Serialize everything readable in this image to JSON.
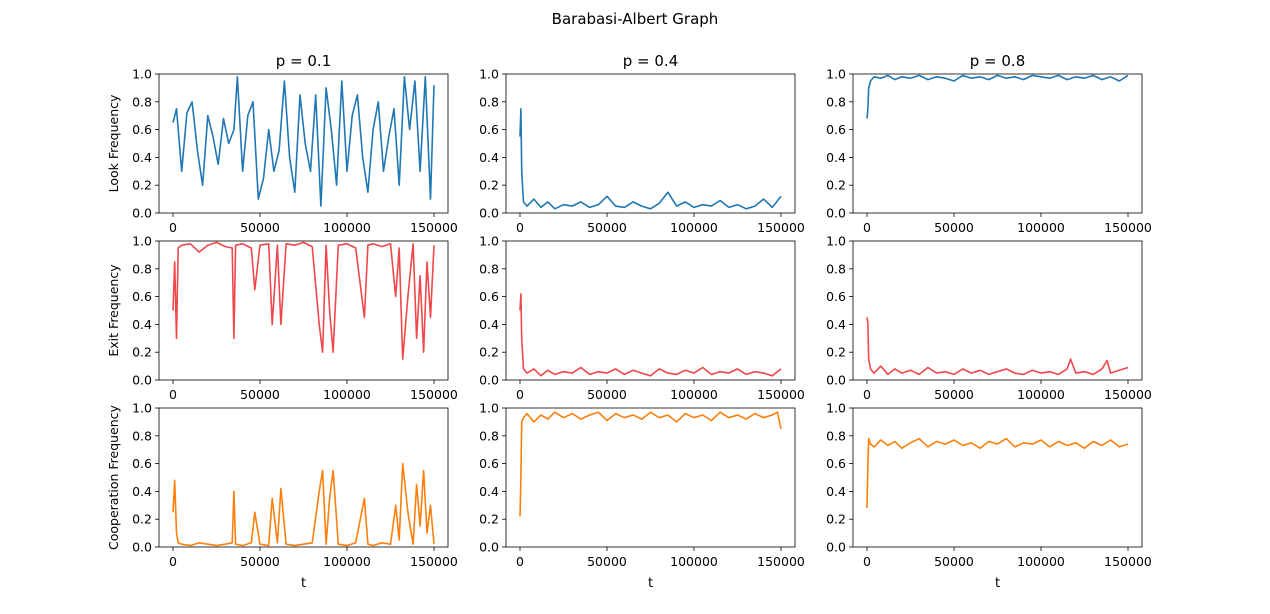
{
  "figure": {
    "title": "Barabasi-Albert Graph"
  },
  "colors": {
    "look": "#1f77b4",
    "exit": "#f0474b",
    "cooperation": "#ff7f0e"
  },
  "column_titles": [
    "p = 0.1",
    "p = 0.4",
    "p = 0.8"
  ],
  "row_labels": [
    "Look Frequency",
    "Exit Frequency",
    "Cooperation Frequency"
  ],
  "xlabel": "t",
  "x_ticks": [
    "0",
    "50000",
    "100000",
    "150000"
  ],
  "y_ticks": [
    "0.0",
    "0.2",
    "0.4",
    "0.6",
    "0.8",
    "1.0"
  ],
  "chart_data": [
    {
      "type": "line",
      "row": 0,
      "col": 0,
      "title": "p = 0.1",
      "ylabel": "Look Frequency",
      "xlabel": "",
      "xlim": [
        0,
        150000
      ],
      "ylim": [
        0,
        1
      ],
      "series": [
        {
          "color": "#1f77b4",
          "x": [
            0,
            2000,
            5000,
            8000,
            11000,
            14000,
            17000,
            20000,
            23000,
            26000,
            29000,
            32000,
            35000,
            37000,
            40000,
            43000,
            46000,
            49000,
            52000,
            55000,
            58000,
            61000,
            64000,
            67000,
            70000,
            73000,
            76000,
            79000,
            82000,
            85000,
            88000,
            91000,
            94000,
            97000,
            100000,
            103000,
            106000,
            109000,
            112000,
            115000,
            118000,
            121000,
            124000,
            127000,
            130000,
            133000,
            136000,
            139000,
            142000,
            145000,
            148000,
            150000
          ],
          "y": [
            0.65,
            0.75,
            0.3,
            0.72,
            0.8,
            0.45,
            0.2,
            0.7,
            0.55,
            0.35,
            0.68,
            0.5,
            0.6,
            0.98,
            0.3,
            0.7,
            0.8,
            0.1,
            0.25,
            0.6,
            0.3,
            0.45,
            0.95,
            0.4,
            0.15,
            0.85,
            0.5,
            0.3,
            0.85,
            0.05,
            0.9,
            0.6,
            0.2,
            0.95,
            0.3,
            0.7,
            0.85,
            0.4,
            0.15,
            0.6,
            0.8,
            0.3,
            0.55,
            0.75,
            0.2,
            0.98,
            0.6,
            0.95,
            0.3,
            0.98,
            0.1,
            0.92
          ]
        }
      ]
    },
    {
      "type": "line",
      "row": 0,
      "col": 1,
      "title": "p = 0.4",
      "ylabel": "",
      "xlabel": "",
      "xlim": [
        0,
        150000
      ],
      "ylim": [
        0,
        1
      ],
      "series": [
        {
          "color": "#1f77b4",
          "x": [
            0,
            500,
            1000,
            2000,
            4000,
            8000,
            12000,
            16000,
            20000,
            25000,
            30000,
            35000,
            40000,
            45000,
            50000,
            55000,
            60000,
            65000,
            70000,
            75000,
            80000,
            85000,
            90000,
            95000,
            100000,
            105000,
            110000,
            115000,
            120000,
            125000,
            130000,
            135000,
            140000,
            145000,
            150000
          ],
          "y": [
            0.55,
            0.75,
            0.3,
            0.08,
            0.05,
            0.1,
            0.04,
            0.08,
            0.03,
            0.06,
            0.05,
            0.08,
            0.04,
            0.06,
            0.12,
            0.05,
            0.04,
            0.08,
            0.05,
            0.03,
            0.07,
            0.15,
            0.05,
            0.08,
            0.04,
            0.06,
            0.05,
            0.09,
            0.04,
            0.06,
            0.03,
            0.05,
            0.1,
            0.04,
            0.12
          ]
        }
      ]
    },
    {
      "type": "line",
      "row": 0,
      "col": 2,
      "title": "p = 0.8",
      "ylabel": "",
      "xlabel": "",
      "xlim": [
        0,
        150000
      ],
      "ylim": [
        0,
        1
      ],
      "series": [
        {
          "color": "#1f77b4",
          "x": [
            0,
            500,
            1000,
            2000,
            4000,
            8000,
            12000,
            16000,
            20000,
            25000,
            30000,
            35000,
            40000,
            45000,
            50000,
            55000,
            60000,
            65000,
            70000,
            75000,
            80000,
            85000,
            90000,
            95000,
            100000,
            105000,
            110000,
            115000,
            120000,
            125000,
            130000,
            135000,
            140000,
            145000,
            150000
          ],
          "y": [
            0.68,
            0.75,
            0.9,
            0.95,
            0.98,
            0.97,
            0.99,
            0.96,
            0.98,
            0.97,
            0.99,
            0.96,
            0.98,
            0.97,
            0.95,
            0.99,
            0.97,
            0.98,
            0.96,
            0.99,
            0.97,
            0.98,
            0.96,
            0.99,
            0.98,
            0.97,
            0.99,
            0.96,
            0.98,
            0.97,
            0.99,
            0.96,
            0.98,
            0.95,
            0.99
          ]
        }
      ]
    },
    {
      "type": "line",
      "row": 1,
      "col": 0,
      "title": "",
      "ylabel": "Exit Frequency",
      "xlabel": "",
      "xlim": [
        0,
        150000
      ],
      "ylim": [
        0,
        1
      ],
      "series": [
        {
          "color": "#f0474b",
          "x": [
            0,
            1000,
            2000,
            3000,
            5000,
            10000,
            15000,
            20000,
            25000,
            30000,
            34000,
            35000,
            36000,
            40000,
            45000,
            47000,
            50000,
            55000,
            57000,
            60000,
            62000,
            65000,
            70000,
            75000,
            80000,
            84000,
            86000,
            88000,
            90000,
            92000,
            95000,
            100000,
            105000,
            110000,
            112000,
            115000,
            120000,
            125000,
            128000,
            130000,
            132000,
            135000,
            138000,
            140000,
            142000,
            144000,
            146000,
            148000,
            150000
          ],
          "y": [
            0.5,
            0.85,
            0.3,
            0.95,
            0.97,
            0.98,
            0.92,
            0.97,
            0.99,
            0.96,
            0.95,
            0.3,
            0.97,
            0.98,
            0.95,
            0.65,
            0.97,
            0.98,
            0.4,
            0.97,
            0.4,
            0.98,
            0.97,
            0.99,
            0.96,
            0.4,
            0.2,
            0.97,
            0.5,
            0.2,
            0.97,
            0.98,
            0.95,
            0.45,
            0.97,
            0.98,
            0.96,
            0.98,
            0.6,
            0.95,
            0.15,
            0.6,
            0.98,
            0.3,
            0.75,
            0.2,
            0.85,
            0.45,
            0.97
          ]
        }
      ]
    },
    {
      "type": "line",
      "row": 1,
      "col": 1,
      "title": "",
      "ylabel": "",
      "xlabel": "",
      "xlim": [
        0,
        150000
      ],
      "ylim": [
        0,
        1
      ],
      "series": [
        {
          "color": "#f0474b",
          "x": [
            0,
            500,
            1000,
            2000,
            4000,
            8000,
            12000,
            16000,
            20000,
            25000,
            30000,
            35000,
            40000,
            45000,
            50000,
            55000,
            60000,
            65000,
            70000,
            75000,
            80000,
            85000,
            90000,
            95000,
            100000,
            105000,
            110000,
            115000,
            120000,
            125000,
            130000,
            135000,
            140000,
            145000,
            150000
          ],
          "y": [
            0.5,
            0.62,
            0.3,
            0.08,
            0.05,
            0.08,
            0.03,
            0.07,
            0.04,
            0.06,
            0.05,
            0.09,
            0.04,
            0.06,
            0.05,
            0.08,
            0.04,
            0.07,
            0.05,
            0.03,
            0.08,
            0.05,
            0.04,
            0.07,
            0.05,
            0.09,
            0.04,
            0.06,
            0.05,
            0.08,
            0.04,
            0.06,
            0.05,
            0.03,
            0.08
          ]
        }
      ]
    },
    {
      "type": "line",
      "row": 1,
      "col": 2,
      "title": "",
      "ylabel": "",
      "xlabel": "",
      "xlim": [
        0,
        150000
      ],
      "ylim": [
        0,
        1
      ],
      "series": [
        {
          "color": "#f0474b",
          "x": [
            0,
            500,
            1000,
            2000,
            4000,
            8000,
            12000,
            16000,
            20000,
            25000,
            30000,
            35000,
            40000,
            45000,
            50000,
            55000,
            60000,
            65000,
            70000,
            75000,
            80000,
            85000,
            90000,
            95000,
            100000,
            105000,
            110000,
            115000,
            117000,
            120000,
            125000,
            130000,
            135000,
            138000,
            140000,
            145000,
            150000
          ],
          "y": [
            0.45,
            0.4,
            0.15,
            0.08,
            0.05,
            0.1,
            0.04,
            0.08,
            0.05,
            0.07,
            0.04,
            0.09,
            0.05,
            0.06,
            0.04,
            0.08,
            0.05,
            0.07,
            0.04,
            0.06,
            0.08,
            0.05,
            0.04,
            0.07,
            0.05,
            0.06,
            0.04,
            0.08,
            0.15,
            0.05,
            0.06,
            0.04,
            0.08,
            0.14,
            0.05,
            0.07,
            0.09
          ]
        }
      ]
    },
    {
      "type": "line",
      "row": 2,
      "col": 0,
      "title": "",
      "ylabel": "Cooperation Frequency",
      "xlabel": "t",
      "xlim": [
        0,
        150000
      ],
      "ylim": [
        0,
        1
      ],
      "series": [
        {
          "color": "#ff7f0e",
          "x": [
            0,
            1000,
            2000,
            3000,
            5000,
            10000,
            15000,
            20000,
            25000,
            30000,
            34000,
            35000,
            36000,
            40000,
            45000,
            47000,
            50000,
            55000,
            57000,
            60000,
            62000,
            65000,
            70000,
            75000,
            80000,
            84000,
            86000,
            88000,
            90000,
            92000,
            95000,
            100000,
            105000,
            110000,
            112000,
            115000,
            120000,
            125000,
            128000,
            130000,
            132000,
            135000,
            138000,
            140000,
            142000,
            144000,
            146000,
            148000,
            150000
          ],
          "y": [
            0.25,
            0.48,
            0.1,
            0.03,
            0.02,
            0.01,
            0.03,
            0.02,
            0.01,
            0.02,
            0.03,
            0.4,
            0.02,
            0.01,
            0.03,
            0.25,
            0.02,
            0.01,
            0.35,
            0.03,
            0.42,
            0.02,
            0.01,
            0.02,
            0.03,
            0.4,
            0.55,
            0.02,
            0.35,
            0.55,
            0.02,
            0.01,
            0.03,
            0.35,
            0.02,
            0.01,
            0.03,
            0.02,
            0.3,
            0.05,
            0.6,
            0.25,
            0.02,
            0.45,
            0.15,
            0.55,
            0.1,
            0.3,
            0.02
          ]
        }
      ]
    },
    {
      "type": "line",
      "row": 2,
      "col": 1,
      "title": "",
      "ylabel": "",
      "xlabel": "t",
      "xlim": [
        0,
        150000
      ],
      "ylim": [
        0,
        1
      ],
      "series": [
        {
          "color": "#ff7f0e",
          "x": [
            0,
            500,
            1000,
            2000,
            4000,
            8000,
            12000,
            16000,
            20000,
            25000,
            30000,
            35000,
            40000,
            45000,
            50000,
            55000,
            60000,
            65000,
            70000,
            75000,
            80000,
            85000,
            90000,
            95000,
            100000,
            105000,
            110000,
            115000,
            120000,
            125000,
            130000,
            135000,
            140000,
            145000,
            148000,
            150000
          ],
          "y": [
            0.22,
            0.5,
            0.9,
            0.93,
            0.96,
            0.9,
            0.95,
            0.92,
            0.97,
            0.93,
            0.96,
            0.92,
            0.95,
            0.97,
            0.91,
            0.96,
            0.93,
            0.95,
            0.92,
            0.97,
            0.93,
            0.95,
            0.9,
            0.96,
            0.93,
            0.95,
            0.91,
            0.97,
            0.93,
            0.95,
            0.92,
            0.96,
            0.93,
            0.95,
            0.97,
            0.85
          ]
        }
      ]
    },
    {
      "type": "line",
      "row": 2,
      "col": 2,
      "title": "",
      "ylabel": "",
      "xlabel": "t",
      "xlim": [
        0,
        150000
      ],
      "ylim": [
        0,
        1
      ],
      "series": [
        {
          "color": "#ff7f0e",
          "x": [
            0,
            500,
            1000,
            2000,
            4000,
            8000,
            12000,
            16000,
            20000,
            25000,
            30000,
            35000,
            40000,
            45000,
            50000,
            55000,
            60000,
            65000,
            70000,
            75000,
            80000,
            85000,
            90000,
            95000,
            100000,
            105000,
            110000,
            115000,
            120000,
            125000,
            130000,
            135000,
            140000,
            145000,
            150000
          ],
          "y": [
            0.28,
            0.6,
            0.78,
            0.74,
            0.72,
            0.77,
            0.73,
            0.76,
            0.71,
            0.75,
            0.78,
            0.72,
            0.76,
            0.74,
            0.77,
            0.73,
            0.75,
            0.71,
            0.76,
            0.74,
            0.78,
            0.72,
            0.75,
            0.74,
            0.77,
            0.72,
            0.76,
            0.73,
            0.75,
            0.71,
            0.76,
            0.73,
            0.77,
            0.72,
            0.74
          ]
        }
      ]
    }
  ]
}
